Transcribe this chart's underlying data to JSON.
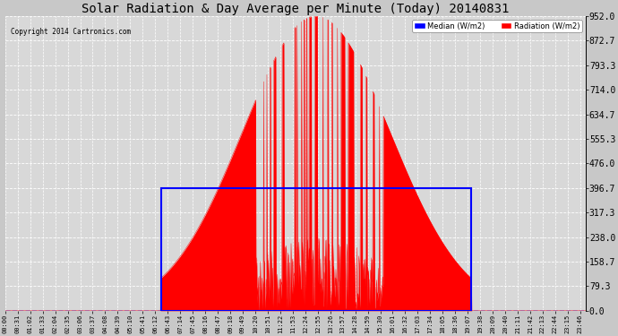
{
  "title": "Solar Radiation & Day Average per Minute (Today) 20140831",
  "copyright": "Copyright 2014 Cartronics.com",
  "ylabel_right_ticks": [
    0.0,
    79.3,
    158.7,
    238.0,
    317.3,
    396.7,
    476.0,
    555.3,
    634.7,
    714.0,
    793.3,
    872.7,
    952.0
  ],
  "ymax": 952.0,
  "ymin": 0.0,
  "bg_color": "#c8c8c8",
  "plot_bg_color": "#d8d8d8",
  "radiation_color": "#ff0000",
  "median_color": "#0000ff",
  "grid_color": "#ffffff",
  "title_fontsize": 10,
  "legend_median_label": "Median (W/m2)",
  "legend_radiation_label": "Radiation (W/m2)",
  "median_value": 396.7,
  "sunrise_min": 386,
  "sunset_min": 1156,
  "n_minutes": 1440,
  "tick_interval": 31,
  "peak_value": 952.0,
  "sigma_divisor": 4.2
}
